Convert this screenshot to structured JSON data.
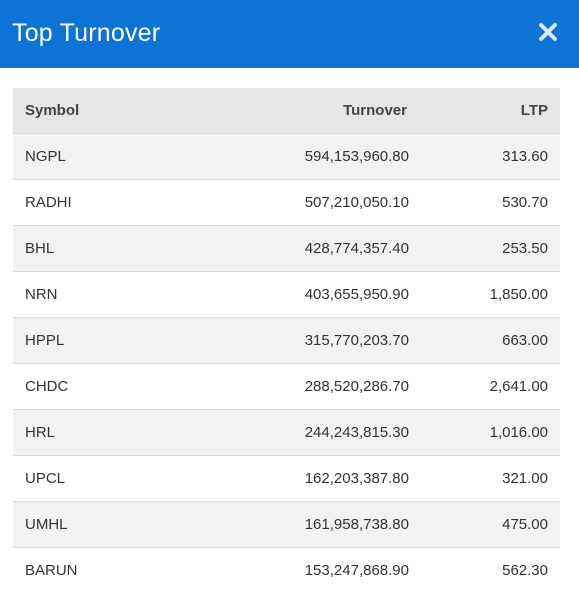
{
  "dialog": {
    "title": "Top Turnover",
    "close_icon": "close-icon"
  },
  "table": {
    "headers": {
      "symbol": "Symbol",
      "turnover": "Turnover",
      "ltp": "LTP"
    },
    "rows": [
      {
        "symbol": "NGPL",
        "turnover": "594,153,960.80",
        "ltp": "313.60"
      },
      {
        "symbol": "RADHI",
        "turnover": "507,210,050.10",
        "ltp": "530.70"
      },
      {
        "symbol": "BHL",
        "turnover": "428,774,357.40",
        "ltp": "253.50"
      },
      {
        "symbol": "NRN",
        "turnover": "403,655,950.90",
        "ltp": "1,850.00"
      },
      {
        "symbol": "HPPL",
        "turnover": "315,770,203.70",
        "ltp": "663.00"
      },
      {
        "symbol": "CHDC",
        "turnover": "288,520,286.70",
        "ltp": "2,641.00"
      },
      {
        "symbol": "HRL",
        "turnover": "244,243,815.30",
        "ltp": "1,016.00"
      },
      {
        "symbol": "UPCL",
        "turnover": "162,203,387.80",
        "ltp": "321.00"
      },
      {
        "symbol": "UMHL",
        "turnover": "161,958,738.80",
        "ltp": "475.00"
      },
      {
        "symbol": "BARUN",
        "turnover": "153,247,868.90",
        "ltp": "562.30"
      }
    ]
  },
  "colors": {
    "header_bg": "#0d74d6",
    "header_text": "#ffffff",
    "table_head_bg": "#e6e6e6",
    "row_odd_bg": "#f2f2f2",
    "row_even_bg": "#ffffff"
  }
}
